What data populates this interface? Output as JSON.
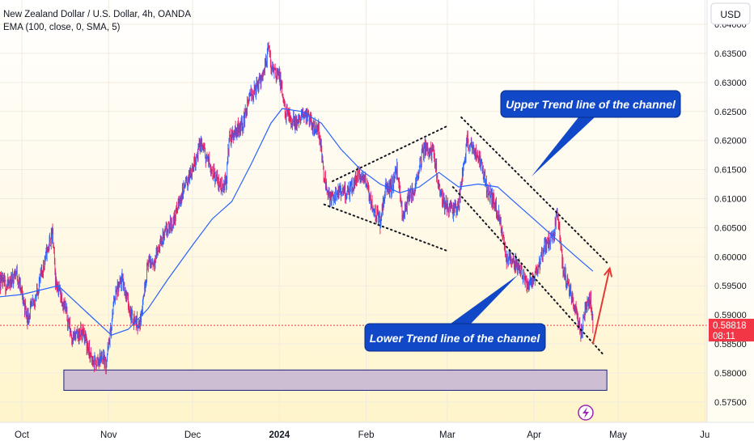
{
  "header": {
    "title": "New Zealand Dollar / U.S. Dollar, 4h, OANDA",
    "indicator": "EMA (100, close, 0, SMA, 5)",
    "currency_button": "USD"
  },
  "price_badge": {
    "price": "0.58818",
    "countdown": "08:11"
  },
  "colors": {
    "up": "#26a69a",
    "down": "#ef5350",
    "candle_up": "#2962ff",
    "candle_down": "#e91e63",
    "ema": "#2962ff",
    "callout_bg": "#1048c8",
    "arrow": "#e53935",
    "zone_fill": "#c9b8d3",
    "zone_stroke": "#1a237e"
  },
  "annotations": {
    "upper_label": "Upper Trend line of the channel",
    "lower_label": "Lower Trend line of the channel"
  },
  "chart_data": {
    "type": "line",
    "ylim": [
      0.5715,
      0.6405
    ],
    "y_ticks": [
      {
        "v": 0.575,
        "label": "0.57500"
      },
      {
        "v": 0.58,
        "label": "0.58000"
      },
      {
        "v": 0.585,
        "label": "0.58500"
      },
      {
        "v": 0.59,
        "label": "0.59000"
      },
      {
        "v": 0.595,
        "label": "0.59500"
      },
      {
        "v": 0.6,
        "label": "0.60000"
      },
      {
        "v": 0.605,
        "label": "0.60500"
      },
      {
        "v": 0.61,
        "label": "0.61000"
      },
      {
        "v": 0.615,
        "label": "0.61500"
      },
      {
        "v": 0.62,
        "label": "0.62000"
      },
      {
        "v": 0.625,
        "label": "0.62500"
      },
      {
        "v": 0.63,
        "label": "0.63000"
      },
      {
        "v": 0.635,
        "label": "0.63500"
      },
      {
        "v": 0.64,
        "label": "0.64000"
      }
    ],
    "x_ticks": [
      {
        "d": "2023-10-01",
        "label": "Oct",
        "bold": false
      },
      {
        "d": "2023-11-01",
        "label": "Nov",
        "bold": false
      },
      {
        "d": "2023-12-01",
        "label": "Dec",
        "bold": false
      },
      {
        "d": "2024-01-01",
        "label": "2024",
        "bold": true
      },
      {
        "d": "2024-02-01",
        "label": "Feb",
        "bold": false
      },
      {
        "d": "2024-03-01",
        "label": "Mar",
        "bold": false
      },
      {
        "d": "2024-04-01",
        "label": "Apr",
        "bold": false
      },
      {
        "d": "2024-05-01",
        "label": "May",
        "bold": false
      },
      {
        "d": "2024-06-01",
        "label": "Ju",
        "bold": false
      }
    ],
    "series": [
      {
        "kind": "close",
        "points": [
          [
            "2023-09-21",
            0.596
          ],
          [
            "2023-09-26",
            0.595
          ],
          [
            "2023-09-29",
            0.5975
          ],
          [
            "2023-10-03",
            0.5895
          ],
          [
            "2023-10-06",
            0.593
          ],
          [
            "2023-10-10",
            0.601
          ],
          [
            "2023-10-12",
            0.604
          ],
          [
            "2023-10-13",
            0.596
          ],
          [
            "2023-10-16",
            0.592
          ],
          [
            "2023-10-19",
            0.586
          ],
          [
            "2023-10-23",
            0.587
          ],
          [
            "2023-10-26",
            0.582
          ],
          [
            "2023-10-27",
            0.5815
          ],
          [
            "2023-10-30",
            0.583
          ],
          [
            "2023-10-31",
            0.5815
          ],
          [
            "2023-11-02",
            0.588
          ],
          [
            "2023-11-03",
            0.593
          ],
          [
            "2023-11-06",
            0.596
          ],
          [
            "2023-11-09",
            0.59
          ],
          [
            "2023-11-12",
            0.588
          ],
          [
            "2023-11-15",
            0.599
          ],
          [
            "2023-11-17",
            0.599
          ],
          [
            "2023-11-20",
            0.603
          ],
          [
            "2023-11-24",
            0.606
          ],
          [
            "2023-11-28",
            0.612
          ],
          [
            "2023-11-30",
            0.614
          ],
          [
            "2023-12-01",
            0.6155
          ],
          [
            "2023-12-04",
            0.6195
          ],
          [
            "2023-12-06",
            0.617
          ],
          [
            "2023-12-08",
            0.615
          ],
          [
            "2023-12-11",
            0.612
          ],
          [
            "2023-12-13",
            0.613
          ],
          [
            "2023-12-14",
            0.62
          ],
          [
            "2023-12-16",
            0.6215
          ],
          [
            "2023-12-19",
            0.623
          ],
          [
            "2023-12-21",
            0.627
          ],
          [
            "2023-12-25",
            0.63
          ],
          [
            "2023-12-27",
            0.633
          ],
          [
            "2023-12-28",
            0.636
          ],
          [
            "2023-12-29",
            0.633
          ],
          [
            "2024-01-01",
            0.631
          ],
          [
            "2024-01-03",
            0.625
          ],
          [
            "2024-01-05",
            0.6235
          ],
          [
            "2024-01-08",
            0.623
          ],
          [
            "2024-01-10",
            0.625
          ],
          [
            "2024-01-12",
            0.623
          ],
          [
            "2024-01-15",
            0.622
          ],
          [
            "2024-01-17",
            0.614
          ],
          [
            "2024-01-19",
            0.61
          ],
          [
            "2024-01-22",
            0.611
          ],
          [
            "2024-01-24",
            0.611
          ],
          [
            "2024-01-26",
            0.611
          ],
          [
            "2024-01-29",
            0.614
          ],
          [
            "2024-02-01",
            0.613
          ],
          [
            "2024-02-03",
            0.609
          ],
          [
            "2024-02-06",
            0.606
          ],
          [
            "2024-02-08",
            0.612
          ],
          [
            "2024-02-10",
            0.612
          ],
          [
            "2024-02-12",
            0.615
          ],
          [
            "2024-02-14",
            0.607
          ],
          [
            "2024-02-16",
            0.61
          ],
          [
            "2024-02-18",
            0.611
          ],
          [
            "2024-02-20",
            0.616
          ],
          [
            "2024-02-22",
            0.619
          ],
          [
            "2024-02-25",
            0.618
          ],
          [
            "2024-02-27",
            0.612
          ],
          [
            "2024-02-29",
            0.609
          ],
          [
            "2024-03-03",
            0.608
          ],
          [
            "2024-03-05",
            0.609
          ],
          [
            "2024-03-07",
            0.616
          ],
          [
            "2024-03-08",
            0.62
          ],
          [
            "2024-03-11",
            0.618
          ],
          [
            "2024-03-13",
            0.616
          ],
          [
            "2024-03-15",
            0.612
          ],
          [
            "2024-03-18",
            0.609
          ],
          [
            "2024-03-20",
            0.606
          ],
          [
            "2024-03-22",
            0.6
          ],
          [
            "2024-03-24",
            0.599
          ],
          [
            "2024-03-27",
            0.598
          ],
          [
            "2024-03-30",
            0.595
          ],
          [
            "2024-04-02",
            0.597
          ],
          [
            "2024-04-05",
            0.602
          ],
          [
            "2024-04-08",
            0.604
          ],
          [
            "2024-04-09",
            0.607
          ],
          [
            "2024-04-10",
            0.605
          ],
          [
            "2024-04-11",
            0.599
          ],
          [
            "2024-04-13",
            0.595
          ],
          [
            "2024-04-15",
            0.592
          ],
          [
            "2024-04-17",
            0.588
          ],
          [
            "2024-04-18",
            0.587
          ],
          [
            "2024-04-19",
            0.59
          ],
          [
            "2024-04-21",
            0.593
          ],
          [
            "2024-04-22",
            0.5882
          ]
        ]
      },
      {
        "name": "EMA (100, close, 0, SMA, 5)",
        "kind": "ema",
        "points": [
          [
            "2023-09-21",
            0.593
          ],
          [
            "2023-10-01",
            0.5935
          ],
          [
            "2023-10-14",
            0.595
          ],
          [
            "2023-10-24",
            0.5905
          ],
          [
            "2023-11-02",
            0.5865
          ],
          [
            "2023-11-08",
            0.5875
          ],
          [
            "2023-11-15",
            0.591
          ],
          [
            "2023-11-22",
            0.596
          ],
          [
            "2023-12-01",
            0.602
          ],
          [
            "2023-12-08",
            0.6065
          ],
          [
            "2023-12-15",
            0.6095
          ],
          [
            "2023-12-22",
            0.616
          ],
          [
            "2023-12-29",
            0.623
          ],
          [
            "2024-01-02",
            0.6255
          ],
          [
            "2024-01-09",
            0.625
          ],
          [
            "2024-01-16",
            0.623
          ],
          [
            "2024-01-23",
            0.6185
          ],
          [
            "2024-01-30",
            0.615
          ],
          [
            "2024-02-06",
            0.6125
          ],
          [
            "2024-02-13",
            0.611
          ],
          [
            "2024-02-20",
            0.612
          ],
          [
            "2024-02-27",
            0.6145
          ],
          [
            "2024-03-05",
            0.612
          ],
          [
            "2024-03-12",
            0.6125
          ],
          [
            "2024-03-19",
            0.612
          ],
          [
            "2024-03-26",
            0.609
          ],
          [
            "2024-04-02",
            0.606
          ],
          [
            "2024-04-09",
            0.603
          ],
          [
            "2024-04-16",
            0.6
          ],
          [
            "2024-04-22",
            0.5975
          ]
        ]
      }
    ],
    "channel_upper": [
      [
        "2024-03-06",
        0.624
      ],
      [
        "2024-04-27",
        0.599
      ]
    ],
    "channel_lower": [
      [
        "2024-03-03",
        0.612
      ],
      [
        "2024-04-26",
        0.583
      ]
    ],
    "triangle_upper": [
      [
        "2024-01-20",
        0.613
      ],
      [
        "2024-03-01",
        0.6225
      ]
    ],
    "triangle_lower": [
      [
        "2024-01-17",
        0.609
      ],
      [
        "2024-03-01",
        0.601
      ]
    ],
    "projection_arrow": [
      [
        "2024-04-22",
        0.585
      ],
      [
        "2024-04-28",
        0.598
      ]
    ],
    "support_zone": {
      "x0": "2023-10-16",
      "x1": "2024-04-27",
      "y0": 0.5805,
      "y1": 0.577
    },
    "current_price": 0.58818
  }
}
